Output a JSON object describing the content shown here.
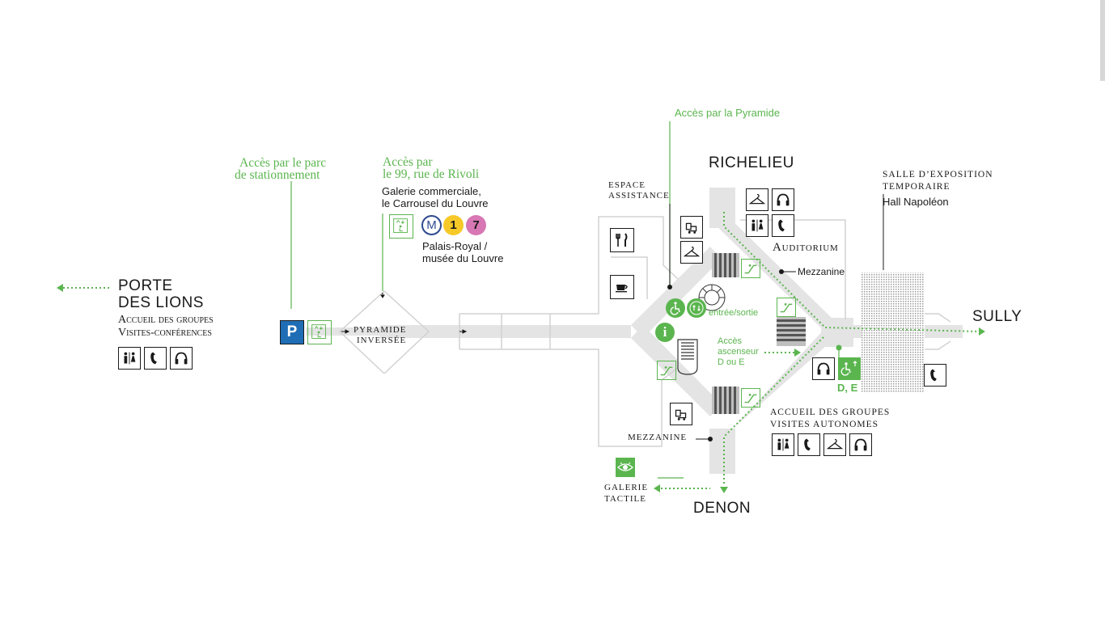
{
  "map": {
    "access_pyramide": "Accès par la Pyramide",
    "access_parc_line1": "Accès par le parc",
    "access_parc_line2": "de stationnement",
    "access_rivoli_line1": "Accès par",
    "access_rivoli_line2": "le 99, rue de Rivoli",
    "galerie_line1": "Galerie commerciale,",
    "galerie_line2": "le Carrousel du Louvre",
    "metro_letter": "M",
    "metro_line_1": "1",
    "metro_line_7": "7",
    "palais_line1": "Palais-Royal /",
    "palais_line2": "musée du Louvre",
    "porte_line1": "PORTE",
    "porte_line2": "DES LIONS",
    "porte_sub1": "Accueil des groupes",
    "porte_sub2": "Visites-conférences",
    "parking_letter": "P",
    "pyramide_inversee_line1": "PYRAMIDE",
    "pyramide_inversee_line2": "INVERSÉE",
    "espace_assistance_line1": "ESPACE",
    "espace_assistance_line2": "ASSISTANCE",
    "richelieu": "RICHELIEU",
    "auditorium": "Auditorium",
    "mezzanine_top": "Mezzanine",
    "salle_line1": "SALLE D’EXPOSITION",
    "salle_line2": "TEMPORAIRE",
    "hall_napoleon": "Hall Napoléon",
    "sully": "SULLY",
    "entree_sortie": "entrée/sortie",
    "info_letter": "i",
    "acces_ascenseur_line1": "Accès",
    "acces_ascenseur_line2": "ascenseur",
    "acces_ascenseur_line3": "D ou E",
    "de_label": "D, E",
    "accueil_auto_line1": "ACCUEIL DES GROUPES",
    "accueil_auto_line2": "VISITES AUTONOMES",
    "mezzanine_bottom": "MEZZANINE",
    "galerie_tactile_line1": "GALERIE",
    "galerie_tactile_line2": "TACTILE",
    "denon": "DENON"
  },
  "colors": {
    "accent_green": "#5bb54f",
    "corridor_grey": "#e4e4e4",
    "parking_blue": "#1f6db5",
    "metro_line1_yellow": "#f6c928",
    "metro_line7_pink": "#d777b3",
    "metro_blue": "#2e4a8f"
  },
  "icons": [
    "restroom-icon",
    "phone-icon",
    "audioguide-icon",
    "elevator-icon",
    "restaurant-icon",
    "cafe-icon",
    "stroller-icon",
    "cloakroom-icon",
    "escalator-icon",
    "wheelchair-icon",
    "info-icon",
    "tactile-eye-icon"
  ]
}
